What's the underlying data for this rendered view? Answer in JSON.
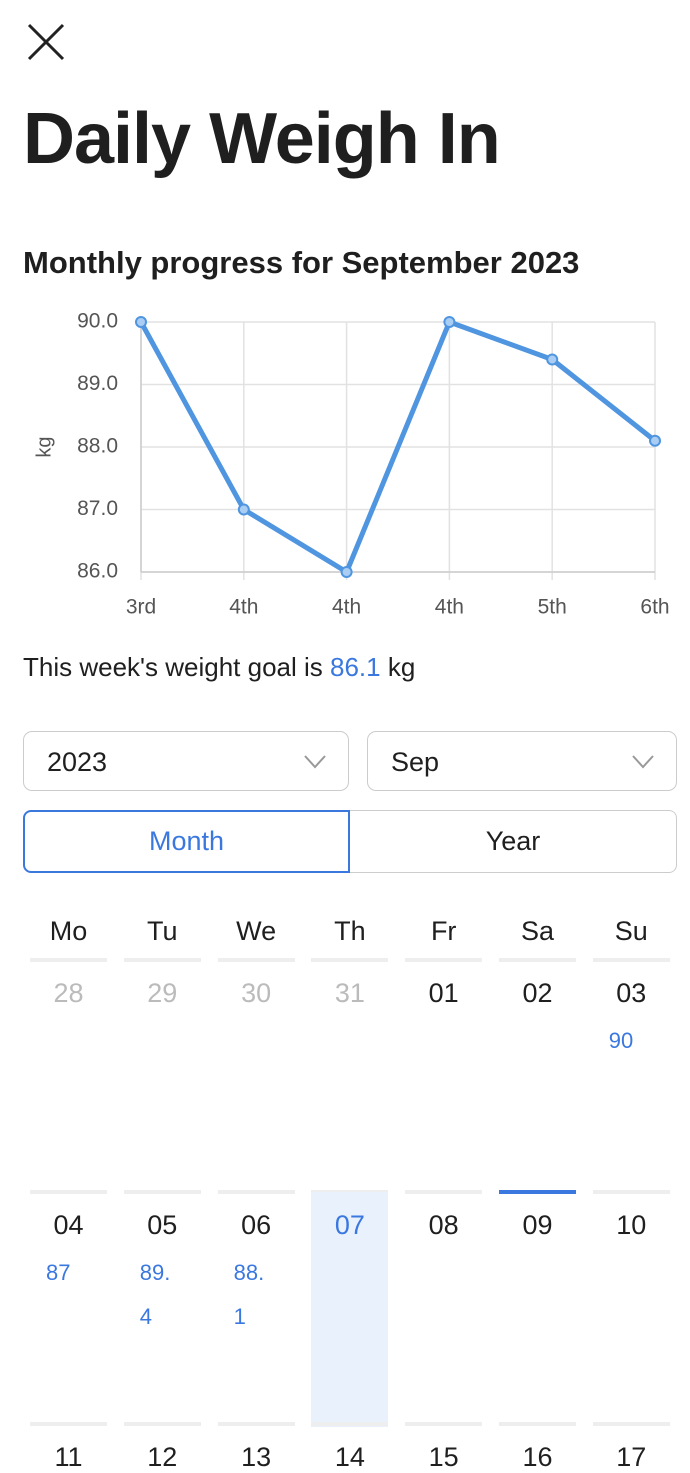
{
  "header": {
    "title": "Daily Weigh In"
  },
  "chart_data": {
    "type": "line",
    "title": "Monthly progress for September 2023",
    "y_label": "kg",
    "categories": [
      "3rd",
      "4th",
      "4th",
      "4th",
      "5th",
      "6th"
    ],
    "values": [
      90,
      87,
      86,
      90,
      89.4,
      88.1
    ],
    "color": "#4f95e0",
    "ylim": [
      86,
      90
    ],
    "yticks": [
      {
        "value": 86,
        "label": "86.0"
      },
      {
        "value": 87,
        "label": "87.0"
      },
      {
        "value": 88,
        "label": "88.0"
      },
      {
        "value": 89,
        "label": "89.0"
      },
      {
        "value": 90,
        "label": "90.0"
      }
    ],
    "grid": true
  },
  "goal": {
    "text": "This week's weight goal is",
    "value": 86.1,
    "unit": "kg"
  },
  "filters": {
    "year": "2023",
    "month": "Sep"
  },
  "view_toggle": {
    "options": [
      "Month",
      "Year"
    ]
  },
  "calendar": {
    "weekdays": [
      "Mo",
      "Tu",
      "We",
      "Th",
      "Fr",
      "Sa",
      "Su"
    ],
    "leading_days": [
      "28",
      "29",
      "30",
      "31"
    ],
    "days": [
      {
        "day": "01"
      },
      {
        "day": "02"
      },
      {
        "day": "03",
        "weight": 90
      },
      {
        "day": "04",
        "weight": 87
      },
      {
        "day": "05",
        "weight": 89.4
      },
      {
        "day": "06",
        "weight": 88.1
      },
      {
        "day": "07",
        "today": true
      },
      {
        "day": "08"
      },
      {
        "day": "09",
        "selected": true
      },
      {
        "day": "10"
      },
      {
        "day": "11"
      },
      {
        "day": "12"
      },
      {
        "day": "13"
      },
      {
        "day": "14"
      },
      {
        "day": "15"
      },
      {
        "day": "16"
      },
      {
        "day": "17"
      }
    ]
  }
}
